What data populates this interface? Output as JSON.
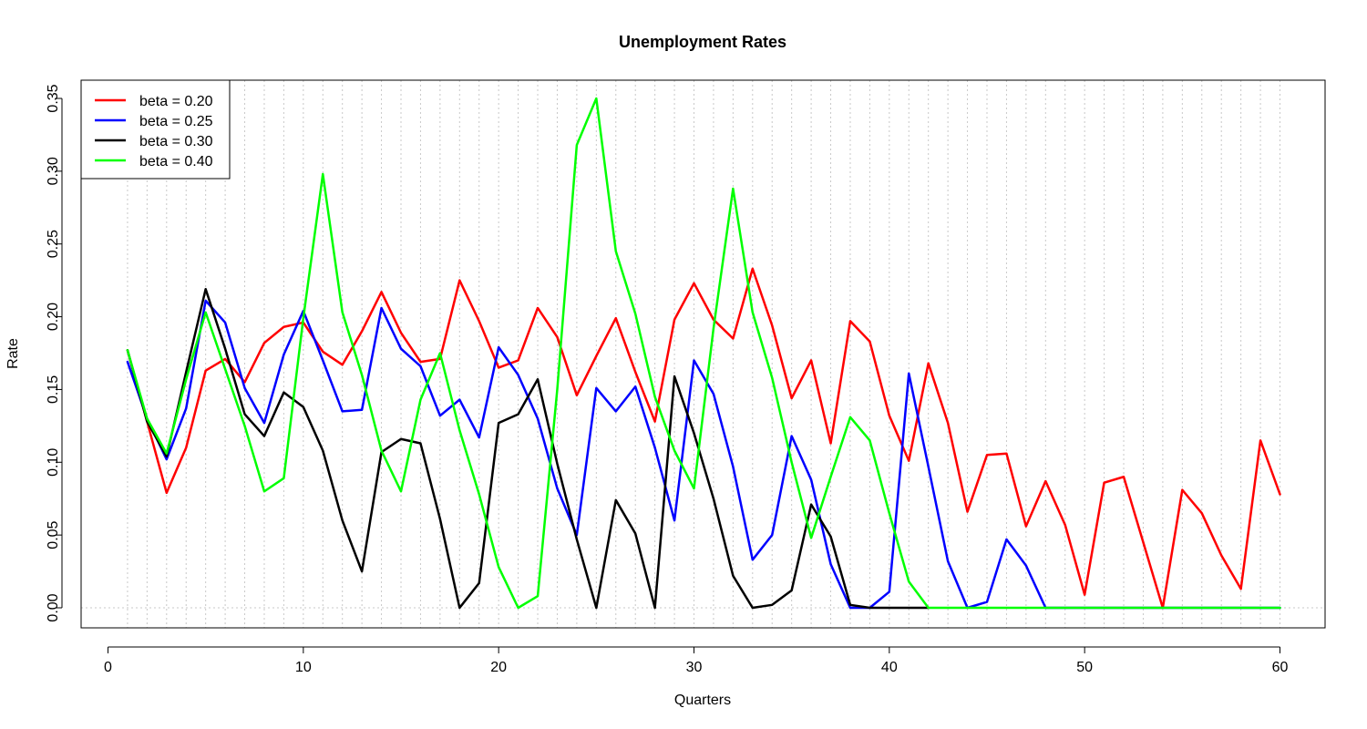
{
  "chart_data": {
    "type": "line",
    "title": "Unemployment Rates",
    "xlabel": "Quarters",
    "ylabel": "Rate",
    "xlim": [
      0,
      60
    ],
    "ylim": [
      0,
      0.35
    ],
    "xticks": [
      0,
      10,
      20,
      30,
      40,
      50,
      60
    ],
    "yticks": [
      "0.00",
      "0.05",
      "0.10",
      "0.15",
      "0.20",
      "0.25",
      "0.30",
      "0.35"
    ],
    "grid": "vertical dotted lines at each quarter, horizontal dotted line at 0",
    "legend_position": "top-left",
    "x": [
      1,
      2,
      3,
      4,
      5,
      6,
      7,
      8,
      9,
      10,
      11,
      12,
      13,
      14,
      15,
      16,
      17,
      18,
      19,
      20,
      21,
      22,
      23,
      24,
      25,
      26,
      27,
      28,
      29,
      30,
      31,
      32,
      33,
      34,
      35,
      36,
      37,
      38,
      39,
      40,
      41,
      42,
      43,
      44,
      45,
      46,
      47,
      48,
      49,
      50,
      51,
      52,
      53,
      54,
      55,
      56,
      57,
      58,
      59,
      60
    ],
    "series": [
      {
        "name": "beta = 0.20",
        "color": "#ff0000",
        "values": [
          0.177,
          0.128,
          0.079,
          0.11,
          0.163,
          0.171,
          0.155,
          0.182,
          0.193,
          0.196,
          0.176,
          0.167,
          0.19,
          0.217,
          0.189,
          0.169,
          0.171,
          0.225,
          0.197,
          0.165,
          0.17,
          0.206,
          0.186,
          0.146,
          0.173,
          0.199,
          0.162,
          0.128,
          0.198,
          0.223,
          0.198,
          0.185,
          0.233,
          0.194,
          0.144,
          0.17,
          0.113,
          0.197,
          0.183,
          0.132,
          0.101,
          0.168,
          0.127,
          0.066,
          0.105,
          0.106,
          0.056,
          0.087,
          0.057,
          0.009,
          0.086,
          0.09,
          0.045,
          0.0,
          0.081,
          0.065,
          0.036,
          0.013,
          0.115,
          0.078
        ]
      },
      {
        "name": "beta = 0.25",
        "color": "#0000ff",
        "values": [
          0.169,
          0.13,
          0.102,
          0.137,
          0.211,
          0.196,
          0.151,
          0.127,
          0.174,
          0.204,
          0.17,
          0.135,
          0.136,
          0.206,
          0.178,
          0.166,
          0.132,
          0.143,
          0.117,
          0.179,
          0.16,
          0.13,
          0.082,
          0.05,
          0.151,
          0.135,
          0.152,
          0.11,
          0.06,
          0.17,
          0.147,
          0.097,
          0.033,
          0.05,
          0.118,
          0.088,
          0.03,
          0.0,
          0.0,
          0.011,
          0.161,
          0.097,
          0.032,
          0.0,
          0.004,
          0.047,
          0.029,
          0.0,
          0.0,
          0.0,
          0.0,
          0.0,
          0.0,
          0.0,
          0.0,
          0.0,
          0.0,
          0.0,
          0.0,
          0.0
        ]
      },
      {
        "name": "beta = 0.30",
        "color": "#000000",
        "values": [
          0.177,
          0.128,
          0.104,
          0.162,
          0.219,
          0.178,
          0.133,
          0.118,
          0.148,
          0.138,
          0.108,
          0.06,
          0.025,
          0.107,
          0.116,
          0.113,
          0.061,
          0.0,
          0.017,
          0.127,
          0.133,
          0.157,
          0.099,
          0.047,
          0.0,
          0.074,
          0.051,
          0.0,
          0.159,
          0.12,
          0.075,
          0.022,
          0.0,
          0.002,
          0.012,
          0.071,
          0.049,
          0.002,
          0.0,
          0.0,
          0.0,
          0.0,
          null,
          null,
          null,
          null,
          null,
          null,
          null,
          null,
          null,
          null,
          null,
          null,
          null,
          null,
          null,
          null,
          null,
          null
        ]
      },
      {
        "name": "beta = 0.40",
        "color": "#00ff00",
        "values": [
          0.177,
          0.13,
          0.106,
          0.157,
          0.203,
          0.164,
          0.125,
          0.08,
          0.089,
          0.199,
          0.298,
          0.203,
          0.16,
          0.108,
          0.08,
          0.143,
          0.175,
          0.122,
          0.078,
          0.028,
          0.0,
          0.008,
          0.15,
          0.318,
          0.35,
          0.245,
          0.202,
          0.145,
          0.108,
          0.082,
          0.192,
          0.288,
          0.203,
          0.158,
          0.1,
          0.048,
          0.09,
          0.131,
          0.115,
          0.065,
          0.018,
          0.0,
          0.0,
          0.0,
          0.0,
          0.0,
          0.0,
          0.0,
          0.0,
          0.0,
          0.0,
          0.0,
          0.0,
          0.0,
          0.0,
          0.0,
          0.0,
          0.0,
          0.0,
          0.0
        ]
      }
    ]
  }
}
